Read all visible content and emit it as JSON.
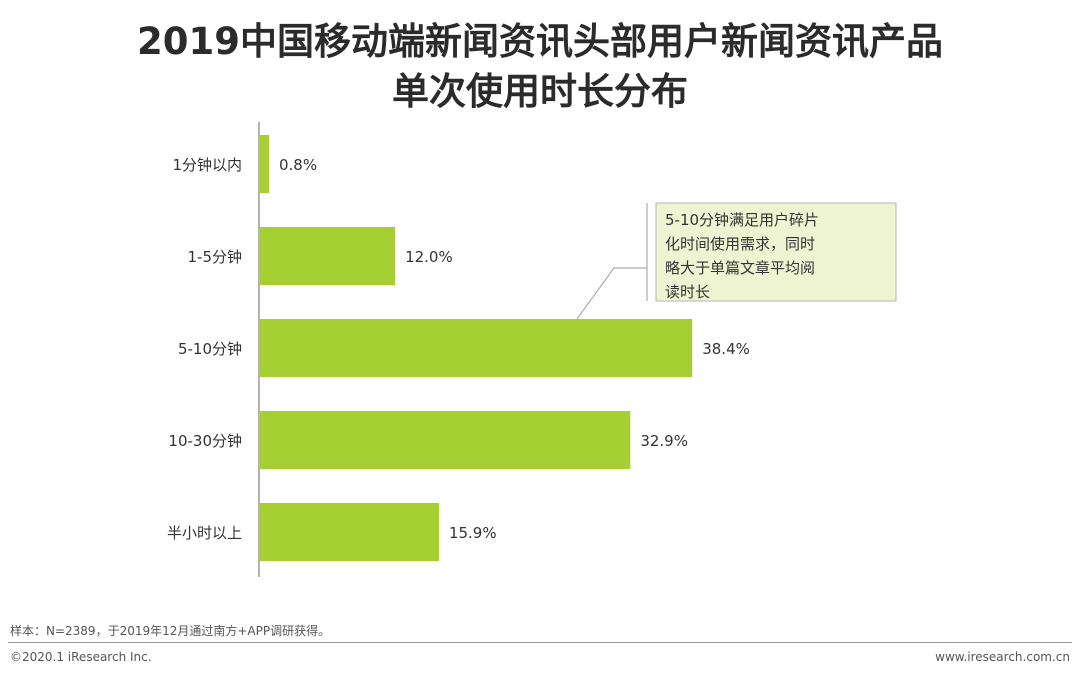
{
  "chart_data": {
    "type": "bar",
    "orientation": "horizontal",
    "title": "2019中国移动端新闻资讯头部用户新闻资讯产品单次使用时长分布",
    "title_lines": [
      "2019中国移动端新闻资讯头部用户新闻资讯产品",
      "单次使用时长分布"
    ],
    "categories": [
      "1分钟以内",
      "1-5分钟",
      "5-10分钟",
      "10-30分钟",
      "半小时以上"
    ],
    "values": [
      0.8,
      12.0,
      38.4,
      32.9,
      15.9
    ],
    "value_labels": [
      "0.8%",
      "12.0%",
      "38.4%",
      "32.9%",
      "15.9%"
    ],
    "unit": "%",
    "xlim": [
      0,
      43
    ],
    "grid": false,
    "bar_color": "#a6cf34",
    "annotation": {
      "lines": [
        "5-10分钟满足用户碎片",
        "化时间使用需求，同时",
        "略大于单篇文章平均阅",
        "读时长"
      ],
      "target_category": "5-10分钟",
      "fill": "#eef3d2",
      "border": "#b5b5b5"
    }
  },
  "footer": {
    "note": "样本：N=2389，于2019年12月通过南方+APP调研获得。",
    "copyright": "©2020.1 iResearch Inc.",
    "website": "www.iresearch.com.cn"
  }
}
